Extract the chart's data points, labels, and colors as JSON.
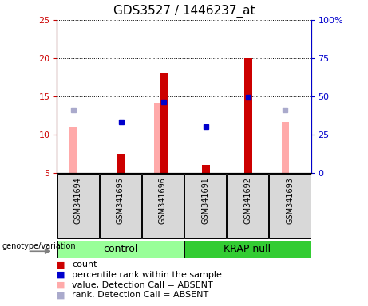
{
  "title": "GDS3527 / 1446237_at",
  "samples": [
    "GSM341694",
    "GSM341695",
    "GSM341696",
    "GSM341691",
    "GSM341692",
    "GSM341693"
  ],
  "red_bars": [
    0,
    7.5,
    18.0,
    6.0,
    20.0,
    0
  ],
  "pink_bars": [
    11.0,
    0,
    14.2,
    0,
    0,
    11.7
  ],
  "blue_squares": [
    0,
    11.7,
    14.3,
    11.0,
    14.9,
    0
  ],
  "light_blue_squares": [
    13.2,
    0,
    0,
    0,
    0,
    13.2
  ],
  "ylim_left": [
    5,
    25
  ],
  "ylim_right": [
    0,
    100
  ],
  "yticks_left": [
    5,
    10,
    15,
    20,
    25
  ],
  "yticks_right": [
    0,
    25,
    50,
    75,
    100
  ],
  "ytick_labels_right": [
    "0",
    "25",
    "50",
    "75",
    "100%"
  ],
  "red_color": "#cc0000",
  "pink_color": "#ffaaaa",
  "blue_color": "#0000cc",
  "light_blue_color": "#aaaacc",
  "control_color": "#99ff99",
  "krap_color": "#33cc33",
  "sample_bg_color": "#d8d8d8",
  "plot_bg": "#ffffff",
  "legend_labels": [
    "count",
    "percentile rank within the sample",
    "value, Detection Call = ABSENT",
    "rank, Detection Call = ABSENT"
  ],
  "bar_width": 0.18,
  "marker_size": 5
}
